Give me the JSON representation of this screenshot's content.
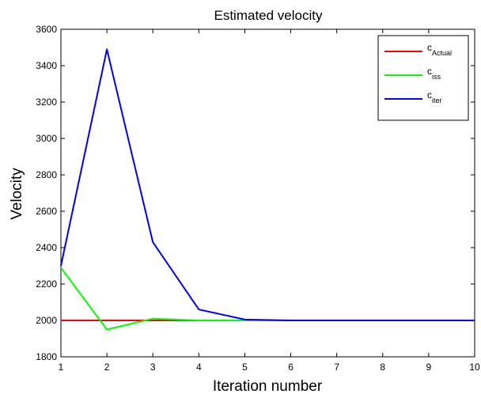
{
  "chart_data": {
    "type": "line",
    "title": "Estimated velocity",
    "xlabel": "Iteration number",
    "ylabel": "Velocity",
    "xlim": [
      1,
      10
    ],
    "ylim": [
      1800,
      3600
    ],
    "xticks": [
      1,
      2,
      3,
      4,
      5,
      6,
      7,
      8,
      9,
      10
    ],
    "yticks": [
      1800,
      2000,
      2200,
      2400,
      2600,
      2800,
      3000,
      3200,
      3400,
      3600
    ],
    "grid": false,
    "legend_position": "top-right",
    "x": [
      1,
      2,
      3,
      4,
      5,
      6,
      7,
      8,
      9,
      10
    ],
    "series": [
      {
        "name": "c_Actual",
        "base": "c",
        "sub": "Actual",
        "color": "#ff0000",
        "values": [
          2000,
          2000,
          2000,
          2000,
          2000,
          2000,
          2000,
          2000,
          2000,
          2000
        ]
      },
      {
        "name": "c_iss",
        "base": "c",
        "sub": "iss",
        "color": "#00ff00",
        "values": [
          2290,
          1950,
          2010,
          2000,
          2000,
          2000,
          2000,
          2000,
          2000,
          2000
        ]
      },
      {
        "name": "c_iter",
        "base": "c",
        "sub": "iter",
        "color": "#0000ff",
        "values": [
          2300,
          3490,
          2430,
          2060,
          2005,
          2000,
          2000,
          2000,
          2000,
          2000
        ]
      }
    ]
  }
}
